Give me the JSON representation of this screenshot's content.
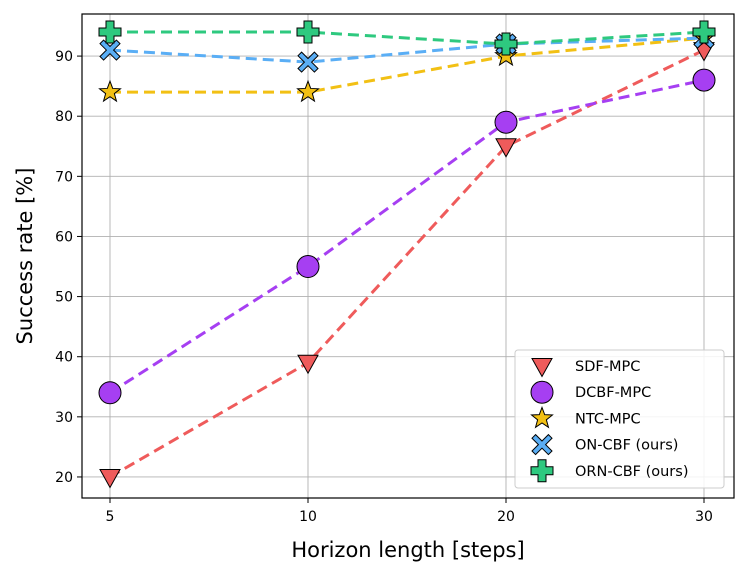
{
  "chart_data": {
    "type": "line",
    "title": "",
    "xlabel": "Horizon length [steps]",
    "ylabel": "Success rate [%]",
    "categories": [
      "5",
      "10",
      "20",
      "30"
    ],
    "ylim": [
      16.5,
      97
    ],
    "yticks": [
      20,
      30,
      40,
      50,
      60,
      70,
      80,
      90
    ],
    "grid": true,
    "legend_position": "bottom-right",
    "series": [
      {
        "name": "SDF-MPC",
        "marker": "triangle-down",
        "color": "#ef5b5b",
        "values": [
          20,
          39,
          75,
          91
        ]
      },
      {
        "name": "DCBF-MPC",
        "marker": "circle",
        "color": "#a63ff2",
        "values": [
          34,
          55,
          79,
          86
        ]
      },
      {
        "name": "NTC-MPC",
        "marker": "star",
        "color": "#f2c014",
        "values": [
          84,
          84,
          90,
          93
        ]
      },
      {
        "name": "ON-CBF (ours)",
        "marker": "x",
        "color": "#5aaef5",
        "values": [
          91,
          89,
          92,
          93
        ]
      },
      {
        "name": "ORN-CBF (ours)",
        "marker": "plus",
        "color": "#2ec97f",
        "values": [
          94,
          94,
          92,
          94
        ]
      }
    ]
  }
}
